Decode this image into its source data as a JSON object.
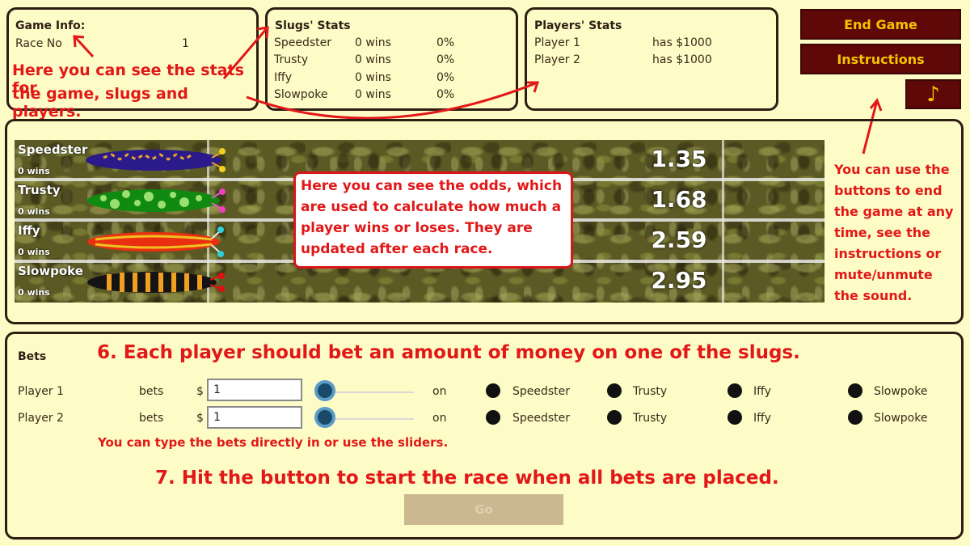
{
  "game_info": {
    "title": "Game Info:",
    "race_label": "Race No",
    "race_value": "1"
  },
  "slugs_stats": {
    "title": "Slugs' Stats",
    "rows": [
      {
        "name": "Speedster",
        "wins": "0 wins",
        "pct": "0%"
      },
      {
        "name": "Trusty",
        "wins": "0 wins",
        "pct": "0%"
      },
      {
        "name": "Iffy",
        "wins": "0 wins",
        "pct": "0%"
      },
      {
        "name": "Slowpoke",
        "wins": "0 wins",
        "pct": "0%"
      }
    ]
  },
  "players_stats": {
    "title": "Players' Stats",
    "rows": [
      {
        "name": "Player 1",
        "money": "has $1000"
      },
      {
        "name": "Player 2",
        "money": "has $1000"
      }
    ]
  },
  "buttons": {
    "end_game": "End Game",
    "instructions": "Instructions",
    "music_icon": "music-note-icon",
    "music_glyph": "♪"
  },
  "annotations": {
    "stats_line1": "Here you can see the stats for",
    "stats_line2": "the game, slugs and players.",
    "odds": "Here you can see the odds, which are used to calculate how much a player wins or loses. They are updated after each race.",
    "buttons_help": [
      "You can use the",
      "buttons to end",
      "the game at any",
      "time, see the",
      "instructions or",
      "mute/unmute",
      "the sound."
    ],
    "step6": "6. Each player should bet an amount of money on one of the slugs.",
    "sliders_tip": "You can type the bets directly in or use the sliders.",
    "step7": "7. Hit the button to start the race when all bets are placed."
  },
  "race": {
    "slugs": [
      {
        "name": "Speedster",
        "wins": "0 wins",
        "odds": "1.35",
        "body": "#2a1a8a",
        "spots": "#e8a030",
        "eyes": "#f0d020"
      },
      {
        "name": "Trusty",
        "wins": "0 wins",
        "odds": "1.68",
        "body": "#108a10",
        "spots": "#9ae070",
        "eyes": "#f040c0"
      },
      {
        "name": "Iffy",
        "wins": "0 wins",
        "odds": "2.59",
        "body": "#e83010",
        "spots": "#f0c020",
        "eyes": "#30d0e0"
      },
      {
        "name": "Slowpoke",
        "wins": "0 wins",
        "odds": "2.95",
        "body": "#141414",
        "spots": "#f0a020",
        "eyes": "#e01010"
      }
    ]
  },
  "bets": {
    "title": "Bets",
    "currency": "$",
    "bets_word": "bets",
    "on_word": "on",
    "slug_options": [
      "Speedster",
      "Trusty",
      "Iffy",
      "Slowpoke"
    ],
    "players": [
      {
        "name": "Player 1",
        "amount": "1"
      },
      {
        "name": "Player 2",
        "amount": "1"
      }
    ]
  },
  "go_button": "Go"
}
